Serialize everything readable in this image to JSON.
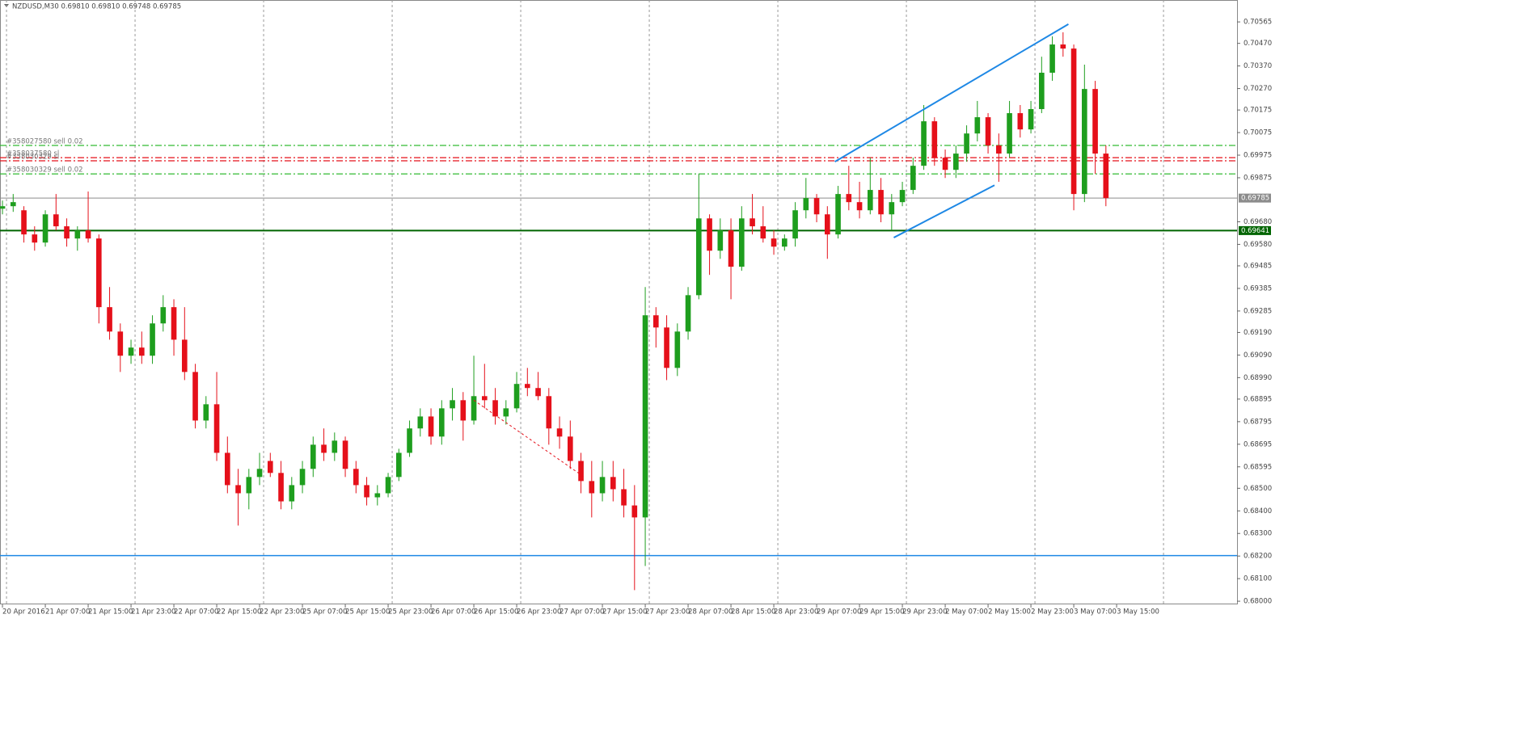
{
  "chart_data": {
    "type": "candlestick",
    "title": "NZDUSD,M30  0.69810 0.69810 0.69748 0.69785",
    "up_color": "#1e9e1e",
    "down_color": "#e5101a",
    "grid": true,
    "ylim": [
      0.67986,
      0.70662
    ],
    "xlim": [
      -0.23,
      115.24
    ],
    "yticks": [
      0.70565,
      {
        "value": 0.7047,
        "label": "0.70470"
      },
      {
        "value": 0.7037,
        "label": "0.70370"
      },
      {
        "value": 0.7027,
        "label": "0.70270"
      },
      0.70175,
      0.70075,
      0.69975,
      0.69875,
      {
        "value": 0.6968,
        "label": "0.69680"
      },
      {
        "value": 0.6958,
        "label": "0.69580"
      },
      0.69485,
      0.69385,
      0.69285,
      {
        "value": 0.6919,
        "label": "0.69190"
      },
      {
        "value": 0.6909,
        "label": "0.69090"
      },
      {
        "value": 0.6899,
        "label": "0.68990"
      },
      0.68895,
      0.68795,
      0.68695,
      0.68595,
      {
        "value": 0.685,
        "label": "0.68500"
      },
      {
        "value": 0.684,
        "label": "0.68400"
      },
      {
        "value": 0.683,
        "label": "0.68300"
      },
      {
        "value": 0.682,
        "label": "0.68200"
      },
      {
        "value": 0.681,
        "label": "0.68100"
      },
      {
        "value": 0.68,
        "label": "0.68000"
      }
    ],
    "xticks": [
      {
        "value": 0,
        "label": "20 Apr 2016"
      },
      {
        "value": 4,
        "label": "21 Apr 07:00"
      },
      {
        "value": 8,
        "label": "21 Apr 15:00"
      },
      {
        "value": 12,
        "label": "21 Apr 23:00"
      },
      {
        "value": 16,
        "label": "22 Apr 07:00"
      },
      {
        "value": 20,
        "label": "22 Apr 15:00"
      },
      {
        "value": 24,
        "label": "22 Apr 23:00"
      },
      {
        "value": 28,
        "label": "25 Apr 07:00"
      },
      {
        "value": 32,
        "label": "25 Apr 15:00"
      },
      {
        "value": 36,
        "label": "25 Apr 23:00"
      },
      {
        "value": 40,
        "label": "26 Apr 07:00"
      },
      {
        "value": 44,
        "label": "26 Apr 15:00"
      },
      {
        "value": 48,
        "label": "26 Apr 23:00"
      },
      {
        "value": 52,
        "label": "27 Apr 07:00"
      },
      {
        "value": 56,
        "label": "27 Apr 15:00"
      },
      {
        "value": 60,
        "label": "27 Apr 23:00"
      },
      {
        "value": 64,
        "label": "28 Apr 07:00"
      },
      {
        "value": 68,
        "label": "28 Apr 15:00"
      },
      {
        "value": 72,
        "label": "28 Apr 23:00"
      },
      {
        "value": 76,
        "label": "29 Apr 07:00"
      },
      {
        "value": 80,
        "label": "29 Apr 15:00"
      },
      {
        "value": 84,
        "label": "29 Apr 23:00"
      },
      {
        "value": 88,
        "label": "2 May 07:00"
      },
      {
        "value": 92,
        "label": "2 May 15:00"
      },
      {
        "value": 96,
        "label": "2 May 23:00"
      },
      {
        "value": 100,
        "label": "3 May 07:00"
      },
      {
        "value": 104,
        "label": "3 May 15:00"
      }
    ],
    "ohlc": [
      [
        0.69738,
        0.69774,
        0.69713,
        0.69749
      ],
      [
        0.69749,
        0.69803,
        0.69724,
        0.69767
      ],
      [
        0.69731,
        0.69749,
        0.69588,
        0.69624
      ],
      [
        0.69624,
        0.6966,
        0.69552,
        0.69588
      ],
      [
        0.69588,
        0.69731,
        0.6957,
        0.69713
      ],
      [
        0.69713,
        0.69803,
        0.69642,
        0.6966
      ],
      [
        0.6966,
        0.69695,
        0.6957,
        0.69606
      ],
      [
        0.69606,
        0.6966,
        0.69552,
        0.69642
      ],
      [
        0.69642,
        0.69814,
        0.69588,
        0.69606
      ],
      [
        0.69606,
        0.69624,
        0.6923,
        0.69302
      ],
      [
        0.69302,
        0.69391,
        0.69158,
        0.69194
      ],
      [
        0.69194,
        0.6923,
        0.69015,
        0.69087
      ],
      [
        0.69087,
        0.69158,
        0.69051,
        0.69123
      ],
      [
        0.69123,
        0.69194,
        0.69051,
        0.69087
      ],
      [
        0.69087,
        0.69266,
        0.69051,
        0.6923
      ],
      [
        0.6923,
        0.69355,
        0.69194,
        0.69302
      ],
      [
        0.69302,
        0.69337,
        0.69087,
        0.69158
      ],
      [
        0.69158,
        0.69302,
        0.68979,
        0.69015
      ],
      [
        0.69015,
        0.69051,
        0.68765,
        0.688
      ],
      [
        0.688,
        0.68908,
        0.68765,
        0.68872
      ],
      [
        0.68872,
        0.69015,
        0.68621,
        0.68657
      ],
      [
        0.68657,
        0.68729,
        0.68478,
        0.68514
      ],
      [
        0.68514,
        0.68586,
        0.68335,
        0.68478
      ],
      [
        0.68478,
        0.68586,
        0.68407,
        0.6855
      ],
      [
        0.6855,
        0.68657,
        0.68514,
        0.68586
      ],
      [
        0.68621,
        0.68657,
        0.6855,
        0.68568
      ],
      [
        0.68568,
        0.68621,
        0.68407,
        0.68442
      ],
      [
        0.68442,
        0.6855,
        0.68407,
        0.68514
      ],
      [
        0.68514,
        0.68621,
        0.68478,
        0.68586
      ],
      [
        0.68586,
        0.68729,
        0.6855,
        0.68693
      ],
      [
        0.68693,
        0.68765,
        0.68621,
        0.68657
      ],
      [
        0.68657,
        0.68747,
        0.68621,
        0.68711
      ],
      [
        0.68711,
        0.68729,
        0.6855,
        0.68586
      ],
      [
        0.68586,
        0.68621,
        0.68478,
        0.68514
      ],
      [
        0.68514,
        0.6855,
        0.68424,
        0.6846
      ],
      [
        0.6846,
        0.68514,
        0.68424,
        0.68478
      ],
      [
        0.68478,
        0.68568,
        0.6846,
        0.6855
      ],
      [
        0.6855,
        0.68675,
        0.68532,
        0.68657
      ],
      [
        0.68657,
        0.688,
        0.68639,
        0.68765
      ],
      [
        0.68765,
        0.68854,
        0.68729,
        0.68818
      ],
      [
        0.68818,
        0.68854,
        0.68693,
        0.68729
      ],
      [
        0.68729,
        0.6889,
        0.68693,
        0.68854
      ],
      [
        0.68854,
        0.68944,
        0.688,
        0.6889
      ],
      [
        0.6889,
        0.68926,
        0.68711,
        0.688
      ],
      [
        0.688,
        0.69087,
        0.68782,
        0.68908
      ],
      [
        0.68908,
        0.69051,
        0.68854,
        0.6889
      ],
      [
        0.6889,
        0.68944,
        0.68782,
        0.68818
      ],
      [
        0.68818,
        0.6889,
        0.68782,
        0.68854
      ],
      [
        0.68854,
        0.69015,
        0.68836,
        0.68962
      ],
      [
        0.68962,
        0.69033,
        0.68908,
        0.68944
      ],
      [
        0.68944,
        0.69015,
        0.6889,
        0.68908
      ],
      [
        0.68908,
        0.68944,
        0.68693,
        0.68765
      ],
      [
        0.68765,
        0.68818,
        0.68675,
        0.68729
      ],
      [
        0.68729,
        0.688,
        0.68586,
        0.68621
      ],
      [
        0.68621,
        0.68657,
        0.68478,
        0.68532
      ],
      [
        0.68532,
        0.68621,
        0.68371,
        0.68478
      ],
      [
        0.68478,
        0.68621,
        0.68442,
        0.6855
      ],
      [
        0.6855,
        0.68621,
        0.68442,
        0.68496
      ],
      [
        0.68496,
        0.68586,
        0.68371,
        0.68424
      ],
      [
        0.68424,
        0.68514,
        0.68049,
        0.68371
      ],
      [
        0.68371,
        0.69391,
        0.68156,
        0.69266
      ],
      [
        0.69266,
        0.69302,
        0.69123,
        0.69212
      ],
      [
        0.69212,
        0.69266,
        0.68979,
        0.69033
      ],
      [
        0.69033,
        0.6923,
        0.68997,
        0.69194
      ],
      [
        0.69194,
        0.69391,
        0.69158,
        0.69355
      ],
      [
        0.69355,
        0.69892,
        0.69337,
        0.69695
      ],
      [
        0.69695,
        0.69713,
        0.69445,
        0.69552
      ],
      [
        0.69552,
        0.69695,
        0.69516,
        0.69642
      ],
      [
        0.69642,
        0.69695,
        0.69337,
        0.69481
      ],
      [
        0.69481,
        0.69749,
        0.69463,
        0.69695
      ],
      [
        0.69695,
        0.69803,
        0.69624,
        0.6966
      ],
      [
        0.6966,
        0.69749,
        0.69588,
        0.69606
      ],
      [
        0.69606,
        0.69642,
        0.69534,
        0.6957
      ],
      [
        0.6957,
        0.69624,
        0.69552,
        0.69606
      ],
      [
        0.69606,
        0.69767,
        0.6957,
        0.69731
      ],
      [
        0.69731,
        0.69874,
        0.69695,
        0.69785
      ],
      [
        0.69785,
        0.69803,
        0.69678,
        0.69713
      ],
      [
        0.69713,
        0.69749,
        0.69516,
        0.69624
      ],
      [
        0.69624,
        0.69839,
        0.69606,
        0.69803
      ],
      [
        0.69803,
        0.69928,
        0.69731,
        0.69767
      ],
      [
        0.69767,
        0.69857,
        0.69695,
        0.69731
      ],
      [
        0.69731,
        0.69964,
        0.69713,
        0.69821
      ],
      [
        0.69821,
        0.69874,
        0.69678,
        0.69713
      ],
      [
        0.69713,
        0.69803,
        0.69642,
        0.69767
      ],
      [
        0.69767,
        0.69857,
        0.69749,
        0.69821
      ],
      [
        0.69821,
        0.69964,
        0.69803,
        0.69928
      ],
      [
        0.69928,
        0.70197,
        0.6991,
        0.70125
      ],
      [
        0.70125,
        0.70143,
        0.69928,
        0.69964
      ],
      [
        0.69964,
        0.7,
        0.69874,
        0.6991
      ],
      [
        0.6991,
        0.70018,
        0.69874,
        0.69982
      ],
      [
        0.69982,
        0.70107,
        0.69946,
        0.70071
      ],
      [
        0.70071,
        0.70215,
        0.70036,
        0.70143
      ],
      [
        0.70143,
        0.70161,
        0.69982,
        0.70018
      ],
      [
        0.70018,
        0.70071,
        0.69857,
        0.69982
      ],
      [
        0.69982,
        0.70215,
        0.69964,
        0.70161
      ],
      [
        0.70161,
        0.70197,
        0.70053,
        0.70089
      ],
      [
        0.70089,
        0.70215,
        0.70071,
        0.70179
      ],
      [
        0.70179,
        0.70411,
        0.70161,
        0.7034
      ],
      [
        0.7034,
        0.70501,
        0.70304,
        0.70465
      ],
      [
        0.70465,
        0.70519,
        0.70411,
        0.70447
      ],
      [
        0.70447,
        0.70465,
        0.69731,
        0.69803
      ],
      [
        0.69803,
        0.70376,
        0.69767,
        0.70268
      ],
      [
        0.70268,
        0.70304,
        0.69892,
        0.69982
      ],
      [
        0.69982,
        0.70018,
        0.69749,
        0.69785
      ]
    ],
    "levels": [
      {
        "label": "#358027580 sell 0.02",
        "value": 0.70018,
        "color": "#33bb33",
        "style": "dashdot"
      },
      {
        "label": "#358037580 sl",
        "value": 0.69964,
        "color": "#e5101a",
        "style": "dashdot"
      },
      {
        "label": "#358030329 sl",
        "value": 0.6995,
        "color": "#e5101a",
        "style": "dashdot"
      },
      {
        "label": "#358030329 sell 0.02",
        "value": 0.69892,
        "color": "#33bb33",
        "style": "dashdot"
      }
    ],
    "current_price": 0.69785,
    "current_color": "#8c8c8c",
    "hline": {
      "value": 0.69641,
      "color": "#006400"
    },
    "support_line": {
      "value": 0.68202,
      "color": "#1e88e5"
    },
    "trendlines": [
      {
        "color": "#1e88e5",
        "points": [
          [
            77.7,
            0.69946
          ],
          [
            99.5,
            0.70555
          ]
        ]
      },
      {
        "color": "#1e88e5",
        "points": [
          [
            83.2,
            0.6961
          ],
          [
            92.6,
            0.69842
          ]
        ]
      }
    ],
    "trade_lines": [
      {
        "color": "#e5101a",
        "points": [
          [
            44,
            0.6889
          ],
          [
            54.3,
            0.6855
          ]
        ]
      }
    ]
  }
}
